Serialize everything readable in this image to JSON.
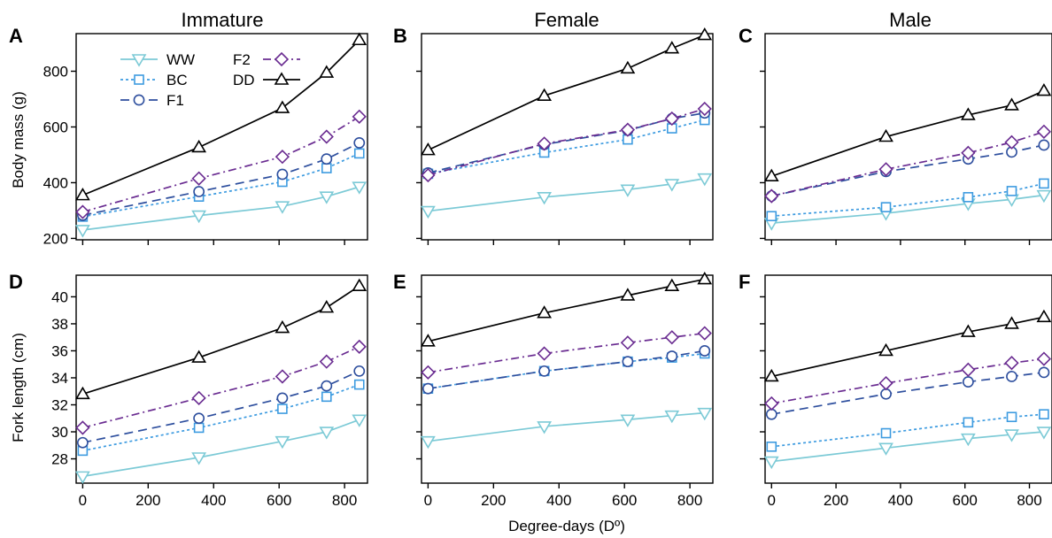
{
  "column_titles": [
    "Immature",
    "Female",
    "Male"
  ],
  "ylabels": {
    "top": "Body mass (g)",
    "bottom": "Fork length (cm)"
  },
  "xlabel": "Degree-days (Dº)",
  "series_styles": {
    "WW": {
      "color": "#7ccad6",
      "dash": "",
      "marker": "triangle-down"
    },
    "BC": {
      "color": "#3d9be0",
      "dash": "3,3",
      "marker": "square"
    },
    "F1": {
      "color": "#2e4f9e",
      "dash": "10,6",
      "marker": "circle"
    },
    "F2": {
      "color": "#6a2c91",
      "dash": "9,4,2,4",
      "marker": "diamond"
    },
    "DD": {
      "color": "#000000",
      "dash": "",
      "marker": "triangle-up"
    }
  },
  "legend": {
    "left": [
      "WW",
      "BC",
      "F1"
    ],
    "right": [
      "F2",
      "DD"
    ]
  },
  "chart_data": [
    {
      "panel": "A",
      "title": "Immature",
      "type": "line",
      "ylabel": "Body mass (g)",
      "ylim": [
        195,
        935
      ],
      "yticks": [
        200,
        400,
        600,
        800
      ],
      "xlim": [
        -20,
        870
      ],
      "xticks": [
        0,
        200,
        400,
        600,
        800
      ],
      "show_xtick_labels": false,
      "show_ytick_labels": true,
      "x": [
        0,
        355,
        610,
        745,
        845
      ],
      "series": [
        {
          "name": "WW",
          "values": [
            230,
            282,
            315,
            350,
            385
          ]
        },
        {
          "name": "BC",
          "values": [
            278,
            350,
            403,
            452,
            505
          ]
        },
        {
          "name": "F1",
          "values": [
            283,
            368,
            430,
            485,
            543
          ]
        },
        {
          "name": "F2",
          "values": [
            295,
            415,
            493,
            565,
            637
          ]
        },
        {
          "name": "DD",
          "values": [
            355,
            527,
            668,
            795,
            912
          ]
        }
      ]
    },
    {
      "panel": "B",
      "title": "Female",
      "type": "line",
      "ylabel": "",
      "ylim": [
        195,
        935
      ],
      "yticks": [
        200,
        400,
        600,
        800
      ],
      "xlim": [
        -20,
        870
      ],
      "xticks": [
        0,
        200,
        400,
        600,
        800
      ],
      "show_xtick_labels": false,
      "show_ytick_labels": false,
      "x": [
        0,
        355,
        610,
        745,
        845
      ],
      "series": [
        {
          "name": "WW",
          "values": [
            298,
            348,
            375,
            395,
            415
          ]
        },
        {
          "name": "BC",
          "values": [
            432,
            508,
            555,
            595,
            625
          ]
        },
        {
          "name": "F1",
          "values": [
            435,
            537,
            588,
            630,
            650
          ]
        },
        {
          "name": "F2",
          "values": [
            427,
            540,
            590,
            630,
            665
          ]
        },
        {
          "name": "DD",
          "values": [
            517,
            712,
            810,
            882,
            930
          ]
        }
      ]
    },
    {
      "panel": "C",
      "title": "Male",
      "type": "line",
      "ylabel": "",
      "ylim": [
        195,
        935
      ],
      "yticks": [
        200,
        400,
        600,
        800
      ],
      "xlim": [
        -20,
        870
      ],
      "xticks": [
        0,
        200,
        400,
        600,
        800
      ],
      "show_xtick_labels": false,
      "show_ytick_labels": false,
      "x": [
        0,
        355,
        610,
        745,
        845
      ],
      "series": [
        {
          "name": "WW",
          "values": [
            255,
            290,
            325,
            340,
            355
          ]
        },
        {
          "name": "BC",
          "values": [
            280,
            312,
            348,
            370,
            397
          ]
        },
        {
          "name": "F1",
          "values": [
            352,
            440,
            485,
            510,
            535
          ]
        },
        {
          "name": "F2",
          "values": [
            352,
            448,
            507,
            545,
            583
          ]
        },
        {
          "name": "DD",
          "values": [
            423,
            565,
            643,
            678,
            730
          ]
        }
      ]
    },
    {
      "panel": "D",
      "title": "",
      "type": "line",
      "ylabel": "Fork length (cm)",
      "ylim": [
        26.2,
        41.6
      ],
      "yticks": [
        28,
        30,
        32,
        34,
        36,
        38,
        40
      ],
      "xlim": [
        -20,
        870
      ],
      "xticks": [
        0,
        200,
        400,
        600,
        800
      ],
      "show_xtick_labels": true,
      "show_ytick_labels": true,
      "x": [
        0,
        355,
        610,
        745,
        845
      ],
      "series": [
        {
          "name": "WW",
          "values": [
            26.7,
            28.1,
            29.3,
            30.0,
            30.9
          ]
        },
        {
          "name": "BC",
          "values": [
            28.6,
            30.3,
            31.7,
            32.6,
            33.5
          ]
        },
        {
          "name": "F1",
          "values": [
            29.2,
            31.0,
            32.5,
            33.4,
            34.5
          ]
        },
        {
          "name": "F2",
          "values": [
            30.3,
            32.5,
            34.1,
            35.2,
            36.3
          ]
        },
        {
          "name": "DD",
          "values": [
            32.8,
            35.5,
            37.7,
            39.2,
            40.8
          ]
        }
      ]
    },
    {
      "panel": "E",
      "title": "",
      "type": "line",
      "ylabel": "",
      "ylim": [
        26.2,
        41.6
      ],
      "yticks": [
        28,
        30,
        32,
        34,
        36,
        38,
        40
      ],
      "xlim": [
        -20,
        870
      ],
      "xticks": [
        0,
        200,
        400,
        600,
        800
      ],
      "show_xtick_labels": true,
      "show_ytick_labels": false,
      "x": [
        0,
        355,
        610,
        745,
        845
      ],
      "series": [
        {
          "name": "WW",
          "values": [
            29.3,
            30.4,
            30.9,
            31.2,
            31.4
          ]
        },
        {
          "name": "BC",
          "values": [
            33.2,
            34.5,
            35.2,
            35.5,
            35.8
          ]
        },
        {
          "name": "F1",
          "values": [
            33.2,
            34.5,
            35.2,
            35.6,
            36.0
          ]
        },
        {
          "name": "F2",
          "values": [
            34.4,
            35.8,
            36.6,
            37.0,
            37.3
          ]
        },
        {
          "name": "DD",
          "values": [
            36.7,
            38.8,
            40.1,
            40.8,
            41.3
          ]
        }
      ]
    },
    {
      "panel": "F",
      "title": "",
      "type": "line",
      "ylabel": "",
      "ylim": [
        26.2,
        41.6
      ],
      "yticks": [
        28,
        30,
        32,
        34,
        36,
        38,
        40
      ],
      "xlim": [
        -20,
        870
      ],
      "xticks": [
        0,
        200,
        400,
        600,
        800
      ],
      "show_xtick_labels": true,
      "show_ytick_labels": false,
      "x": [
        0,
        355,
        610,
        745,
        845
      ],
      "series": [
        {
          "name": "WW",
          "values": [
            27.8,
            28.8,
            29.5,
            29.8,
            30.0
          ]
        },
        {
          "name": "BC",
          "values": [
            28.9,
            29.9,
            30.7,
            31.1,
            31.3
          ]
        },
        {
          "name": "F1",
          "values": [
            31.3,
            32.8,
            33.7,
            34.1,
            34.4
          ]
        },
        {
          "name": "F2",
          "values": [
            32.1,
            33.6,
            34.6,
            35.1,
            35.4
          ]
        },
        {
          "name": "DD",
          "values": [
            34.1,
            36.0,
            37.4,
            38.0,
            38.5
          ]
        }
      ]
    }
  ]
}
